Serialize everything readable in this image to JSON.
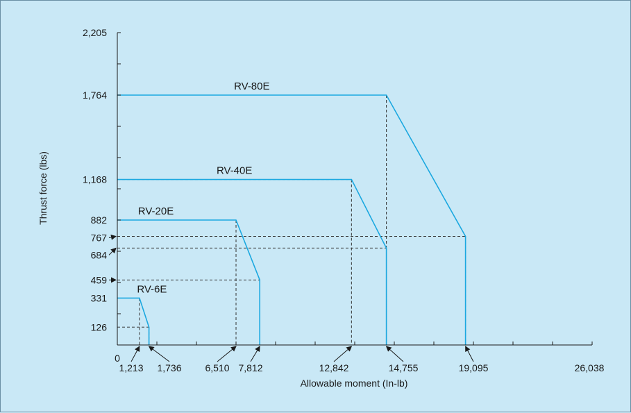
{
  "chart_data": {
    "type": "line",
    "title": "",
    "xlabel": "Allowable moment (In-lb)",
    "ylabel": "Thrust force (lbs)",
    "xlim": [
      0,
      26038
    ],
    "ylim": [
      0,
      2205
    ],
    "x_ticks": [
      {
        "value": 1213,
        "label": "1,213",
        "arrow": true
      },
      {
        "value": 1736,
        "label": "1,736",
        "arrow": true
      },
      {
        "value": 6510,
        "label": "6,510",
        "arrow": true
      },
      {
        "value": 7812,
        "label": "7,812",
        "arrow": true
      },
      {
        "value": 12842,
        "label": "12,842",
        "arrow": true
      },
      {
        "value": 14755,
        "label": "14,755",
        "arrow": true
      },
      {
        "value": 19095,
        "label": "19,095",
        "arrow": true
      },
      {
        "value": 26038,
        "label": "26,038",
        "arrow": false
      }
    ],
    "x_zero_label": "0",
    "y_ticks": [
      {
        "value": 126,
        "label": "126",
        "arrow": false
      },
      {
        "value": 331,
        "label": "331",
        "arrow": false
      },
      {
        "value": 459,
        "label": "459",
        "arrow": true
      },
      {
        "value": 684,
        "label": "684",
        "arrow": true
      },
      {
        "value": 767,
        "label": "767",
        "arrow": true
      },
      {
        "value": 882,
        "label": "882",
        "arrow": false
      },
      {
        "value": 1168,
        "label": "1,168",
        "arrow": false
      },
      {
        "value": 1764,
        "label": "1,764",
        "arrow": false
      },
      {
        "value": 2205,
        "label": "2,205",
        "arrow": false
      }
    ],
    "series": [
      {
        "name": "RV-6E",
        "points": [
          [
            0,
            331
          ],
          [
            1213,
            331
          ],
          [
            1736,
            126
          ],
          [
            1736,
            0
          ]
        ]
      },
      {
        "name": "RV-20E",
        "points": [
          [
            0,
            882
          ],
          [
            6510,
            882
          ],
          [
            7812,
            459
          ],
          [
            7812,
            0
          ]
        ]
      },
      {
        "name": "RV-40E",
        "points": [
          [
            0,
            1168
          ],
          [
            12842,
            1168
          ],
          [
            14755,
            684
          ],
          [
            14755,
            0
          ]
        ]
      },
      {
        "name": "RV-80E",
        "points": [
          [
            0,
            1764
          ],
          [
            14755,
            1764
          ],
          [
            19095,
            767
          ],
          [
            19095,
            0
          ]
        ]
      }
    ],
    "reference_lines": [
      {
        "x": 1213,
        "y": 331
      },
      {
        "x": 1736,
        "y": 126
      },
      {
        "x": 6510,
        "y": 882
      },
      {
        "x": 7812,
        "y": 459
      },
      {
        "x": 12842,
        "y": 1168
      },
      {
        "x": 14755,
        "y": 684
      },
      {
        "x": 14755,
        "y": 1764
      },
      {
        "x": 19095,
        "y": 767
      }
    ],
    "colors": {
      "line": "#1ba8e0",
      "axis": "#1a1a1a",
      "dashed": "#333333",
      "background": "#c9e8f6"
    },
    "grid": false,
    "legend": "none"
  }
}
